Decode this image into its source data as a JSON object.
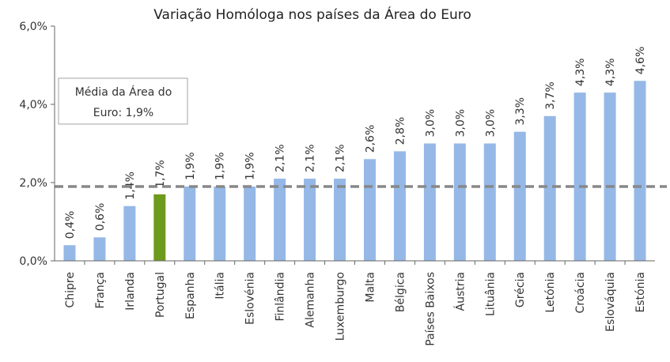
{
  "chart_data": {
    "type": "bar",
    "title": "Variação Homóloga nos países da Área do Euro",
    "categories": [
      "Chipre",
      "França",
      "Irlanda",
      "Portugal",
      "Espanha",
      "Itália",
      "Eslovénia",
      "Finlândia",
      "Alemanha",
      "Luxemburgo",
      "Malta",
      "Bélgica",
      "Países Baixos",
      "Áustria",
      "Lituânia",
      "Grécia",
      "Letónia",
      "Croácia",
      "Eslováquia",
      "Estónia"
    ],
    "values": [
      0.4,
      0.6,
      1.4,
      1.7,
      1.9,
      1.9,
      1.9,
      2.1,
      2.1,
      2.1,
      2.6,
      2.8,
      3.0,
      3.0,
      3.0,
      3.3,
      3.7,
      4.3,
      4.3,
      4.6
    ],
    "data_labels": [
      "0,4%",
      "0,6%",
      "1,4%",
      "1,7%",
      "1,9%",
      "1,9%",
      "1,9%",
      "2,1%",
      "2,1%",
      "2,1%",
      "2,6%",
      "2,8%",
      "3,0%",
      "3,0%",
      "3,0%",
      "3,3%",
      "3,7%",
      "4,3%",
      "4,3%",
      "4,6%"
    ],
    "ylim": [
      0,
      6
    ],
    "yticks": [
      0,
      2,
      4,
      6
    ],
    "ytick_labels": [
      "0,0%",
      "2,0%",
      "4,0%",
      "6,0%"
    ],
    "xlabel": "",
    "ylabel": "",
    "grid": false,
    "bar_color": "#95b8e6",
    "highlight_category": "Portugal",
    "highlight_color": "#6e9a1e",
    "reference_line": {
      "value": 1.9,
      "color": "#888888",
      "label_lines": [
        "Média da Área do",
        "Euro: 1,9%"
      ]
    }
  }
}
